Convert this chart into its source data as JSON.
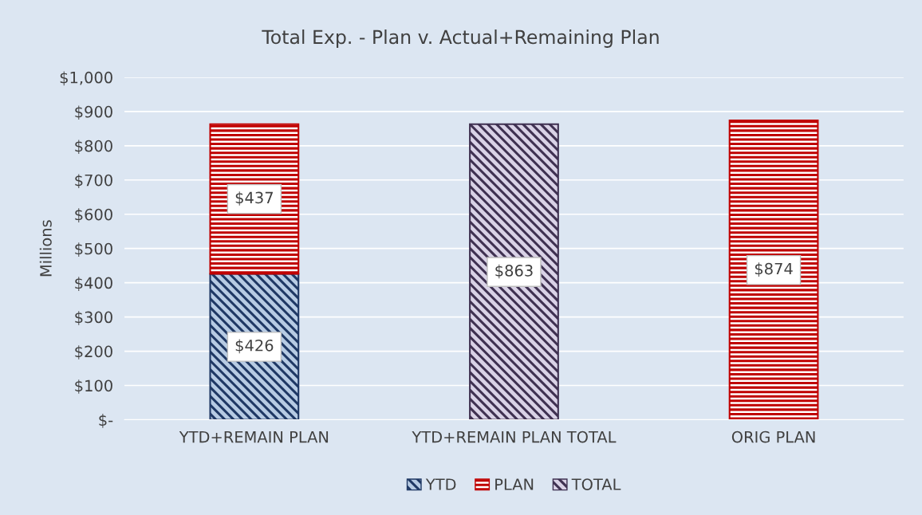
{
  "chart_data": {
    "type": "bar",
    "title": "Total Exp. - Plan v. Actual+Remaining Plan",
    "ylabel": "Millions",
    "categories": [
      "YTD+REMAIN PLAN",
      "YTD+REMAIN PLAN TOTAL",
      "ORIG PLAN"
    ],
    "stacked": true,
    "series": [
      {
        "name": "YTD",
        "color": "#1f3864",
        "values": [
          426,
          null,
          null
        ]
      },
      {
        "name": "PLAN",
        "color": "#c00000",
        "values": [
          437,
          null,
          874
        ]
      },
      {
        "name": "TOTAL",
        "color": "#3f3151",
        "values": [
          null,
          863,
          null
        ]
      }
    ],
    "value_labels": [
      "$426",
      "$437",
      "$874",
      "$863"
    ],
    "ylim": [
      0,
      1000
    ],
    "yticks": [
      {
        "value": 0,
        "label": "$-"
      },
      {
        "value": 100,
        "label": "$100"
      },
      {
        "value": 200,
        "label": "$200"
      },
      {
        "value": 300,
        "label": "$300"
      },
      {
        "value": 400,
        "label": "$400"
      },
      {
        "value": 500,
        "label": "$500"
      },
      {
        "value": 600,
        "label": "$600"
      },
      {
        "value": 700,
        "label": "$700"
      },
      {
        "value": 800,
        "label": "$800"
      },
      {
        "value": 900,
        "label": "$900"
      },
      {
        "value": 1000,
        "label": "$1,000"
      }
    ],
    "grid": "y",
    "legend": "bottom"
  }
}
